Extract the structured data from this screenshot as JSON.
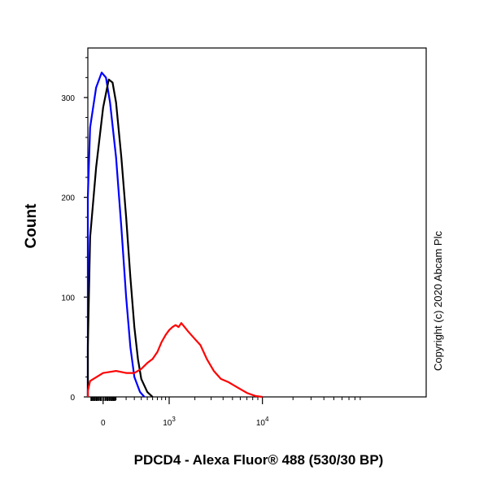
{
  "chart_data": {
    "type": "line",
    "xlabel": "PDCD4 - Alexa Fluor® 488 (530/30 BP)",
    "ylabel": "Count",
    "x_scale": "biexponential",
    "x_ticks": [
      {
        "value": 0,
        "base": "0",
        "exp": ""
      },
      {
        "value": 1000,
        "base": "10",
        "exp": "3"
      },
      {
        "value": 10000,
        "base": "10",
        "exp": "4"
      }
    ],
    "y_ticks": [
      0,
      100,
      200,
      300
    ],
    "ylim": [
      0,
      350
    ],
    "grid": false,
    "legend": "none",
    "annotation": "Copyright (c) 2020 Abcam Plc",
    "series": [
      {
        "color": "#0000ff",
        "points": [
          [
            -500,
            0
          ],
          [
            -400,
            5
          ],
          [
            -300,
            30
          ],
          [
            -200,
            130
          ],
          [
            -150,
            200
          ],
          [
            -100,
            270
          ],
          [
            -50,
            310
          ],
          [
            -10,
            325
          ],
          [
            20,
            320
          ],
          [
            50,
            295
          ],
          [
            100,
            240
          ],
          [
            150,
            170
          ],
          [
            200,
            100
          ],
          [
            250,
            50
          ],
          [
            300,
            20
          ],
          [
            380,
            5
          ],
          [
            450,
            0
          ]
        ]
      },
      {
        "color": "#000000",
        "points": [
          [
            -400,
            0
          ],
          [
            -300,
            8
          ],
          [
            -200,
            50
          ],
          [
            -100,
            160
          ],
          [
            -50,
            230
          ],
          [
            0,
            290
          ],
          [
            40,
            318
          ],
          [
            70,
            315
          ],
          [
            100,
            295
          ],
          [
            150,
            240
          ],
          [
            200,
            180
          ],
          [
            250,
            120
          ],
          [
            300,
            70
          ],
          [
            350,
            38
          ],
          [
            400,
            18
          ],
          [
            500,
            5
          ],
          [
            600,
            0
          ]
        ]
      },
      {
        "color": "#ff0000",
        "points": [
          [
            -320,
            0
          ],
          [
            -200,
            6
          ],
          [
            -100,
            16
          ],
          [
            0,
            24
          ],
          [
            100,
            26
          ],
          [
            200,
            24
          ],
          [
            300,
            24
          ],
          [
            400,
            28
          ],
          [
            500,
            34
          ],
          [
            600,
            38
          ],
          [
            700,
            45
          ],
          [
            800,
            55
          ],
          [
            900,
            62
          ],
          [
            1000,
            67
          ],
          [
            1100,
            70
          ],
          [
            1200,
            72
          ],
          [
            1300,
            70
          ],
          [
            1400,
            74
          ],
          [
            1500,
            71
          ],
          [
            1700,
            65
          ],
          [
            2000,
            58
          ],
          [
            2300,
            52
          ],
          [
            2700,
            38
          ],
          [
            3200,
            26
          ],
          [
            3800,
            18
          ],
          [
            4500,
            15
          ],
          [
            5500,
            10
          ],
          [
            7000,
            4
          ],
          [
            8500,
            1
          ],
          [
            10000,
            0
          ]
        ]
      }
    ]
  }
}
